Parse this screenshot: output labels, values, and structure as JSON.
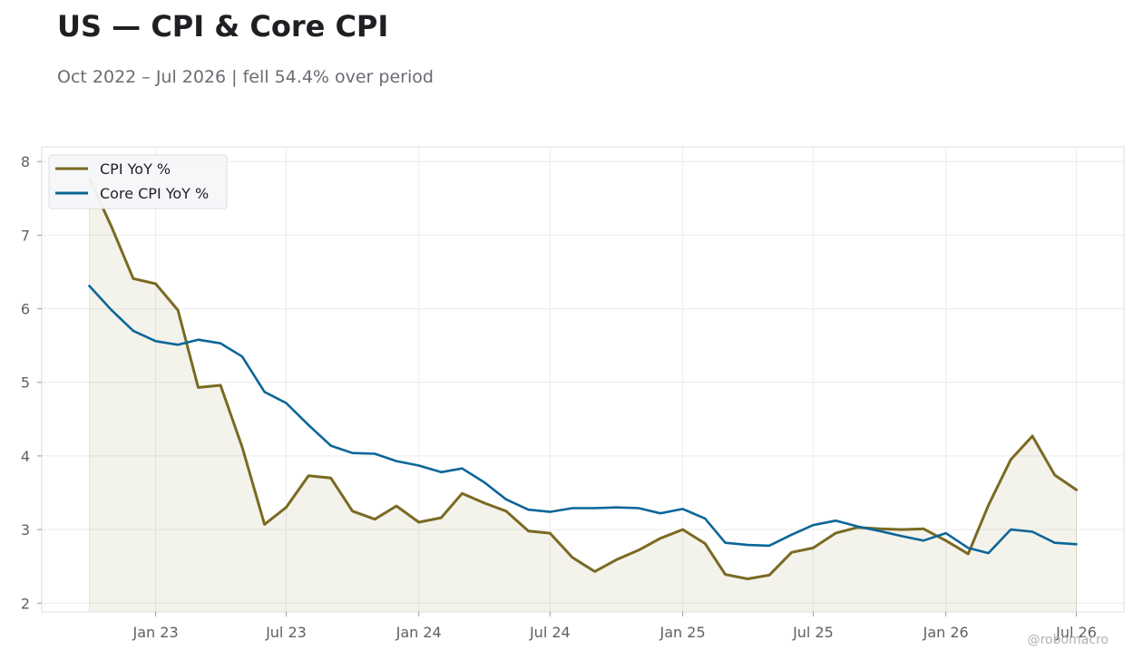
{
  "title": "US — CPI & Core CPI",
  "subtitle": "Oct 2022 – Jul 2026 | fell 54.4% over period",
  "watermark": "@robomacro",
  "colors": {
    "cpi": "#7a6a22",
    "core": "#0b6698",
    "grid": "#ececec",
    "frame": "#dcdcdc"
  },
  "chart_data": {
    "type": "line",
    "x": [
      "2022-10",
      "2022-11",
      "2022-12",
      "2023-01",
      "2023-02",
      "2023-03",
      "2023-04",
      "2023-05",
      "2023-06",
      "2023-07",
      "2023-08",
      "2023-09",
      "2023-10",
      "2023-11",
      "2023-12",
      "2024-01",
      "2024-02",
      "2024-03",
      "2024-04",
      "2024-05",
      "2024-06",
      "2024-07",
      "2024-08",
      "2024-09",
      "2024-10",
      "2024-11",
      "2024-12",
      "2025-01",
      "2025-02",
      "2025-03",
      "2025-04",
      "2025-05",
      "2025-06",
      "2025-07",
      "2025-08",
      "2025-09",
      "2025-10",
      "2025-11",
      "2025-12",
      "2026-01",
      "2026-02",
      "2026-03",
      "2026-04",
      "2026-05",
      "2026-06",
      "2026-07"
    ],
    "series": [
      {
        "name": "CPI YoY %",
        "color": "#7a6a22",
        "fill": true,
        "values": [
          7.77,
          7.11,
          6.41,
          6.34,
          5.98,
          4.93,
          4.96,
          4.12,
          3.07,
          3.3,
          3.73,
          3.7,
          3.25,
          3.14,
          3.32,
          3.1,
          3.16,
          3.49,
          3.36,
          3.25,
          2.98,
          2.95,
          2.62,
          2.43,
          2.59,
          2.72,
          2.88,
          3.0,
          2.81,
          2.39,
          2.33,
          2.38,
          2.69,
          2.75,
          2.95,
          3.03,
          3.01,
          3.0,
          3.01,
          2.85,
          2.67,
          3.33,
          3.95,
          4.27,
          3.74,
          3.54
        ]
      },
      {
        "name": "Core CPI YoY %",
        "color": "#0b6698",
        "fill": false,
        "values": [
          6.31,
          5.98,
          5.7,
          5.56,
          5.51,
          5.58,
          5.53,
          5.35,
          4.87,
          4.72,
          4.42,
          4.14,
          4.04,
          4.03,
          3.93,
          3.87,
          3.78,
          3.83,
          3.64,
          3.41,
          3.27,
          3.24,
          3.29,
          3.29,
          3.3,
          3.29,
          3.22,
          3.28,
          3.15,
          2.82,
          2.79,
          2.78,
          2.93,
          3.06,
          3.12,
          3.04,
          2.98,
          2.91,
          2.85,
          2.95,
          2.75,
          2.68,
          3.0,
          2.97,
          2.82,
          2.8
        ]
      }
    ],
    "x_ticks": [
      {
        "label": "Jan 23",
        "date": "2023-01"
      },
      {
        "label": "Jul 23",
        "date": "2023-07"
      },
      {
        "label": "Jan 24",
        "date": "2024-01"
      },
      {
        "label": "Jul 24",
        "date": "2024-07"
      },
      {
        "label": "Jan 25",
        "date": "2025-01"
      },
      {
        "label": "Jul 25",
        "date": "2025-07"
      },
      {
        "label": "Jan 26",
        "date": "2026-01"
      },
      {
        "label": "Jul 26",
        "date": "2026-07"
      }
    ],
    "y_ticks": [
      2,
      3,
      4,
      5,
      6,
      7,
      8
    ],
    "xlim": [
      "2022-07-27",
      "2026-09-05"
    ],
    "ylim": [
      1.88,
      8.2
    ],
    "grid": true,
    "legend": "top-left",
    "xlabel": "",
    "ylabel": ""
  }
}
